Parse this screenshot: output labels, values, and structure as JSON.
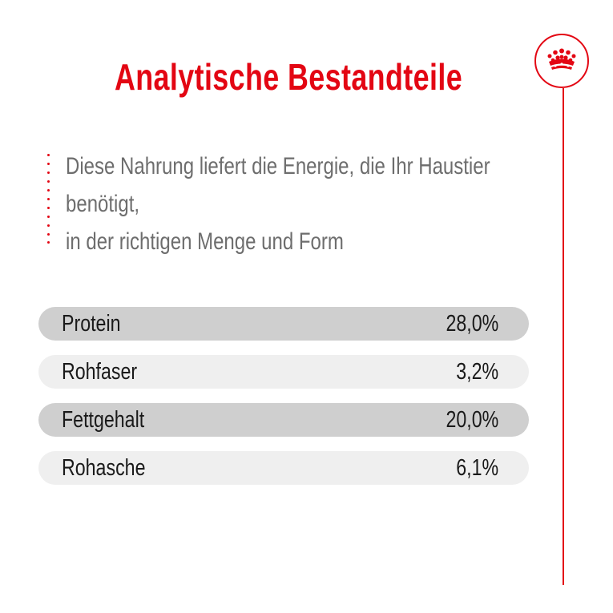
{
  "title": "Analytische Bestandteile",
  "intro": {
    "line1": "Diese Nahrung liefert die Energie, die Ihr Haustier",
    "line2": "benötigt,",
    "line3": "in der richtigen Menge und Form"
  },
  "rows": [
    {
      "label": "Protein",
      "value": "28,0%"
    },
    {
      "label": "Rohfaser",
      "value": "3,2%"
    },
    {
      "label": "Fettgehalt",
      "value": "20,0%"
    },
    {
      "label": "Rohasche",
      "value": "6,1%"
    }
  ],
  "logo": {
    "icon": "crown-icon"
  },
  "colors": {
    "accent": "#e30613",
    "intro_text": "#6d6d6d",
    "row_text": "#1a1a1a",
    "row_dark": "#cfcfcf",
    "row_light": "#efefef"
  }
}
